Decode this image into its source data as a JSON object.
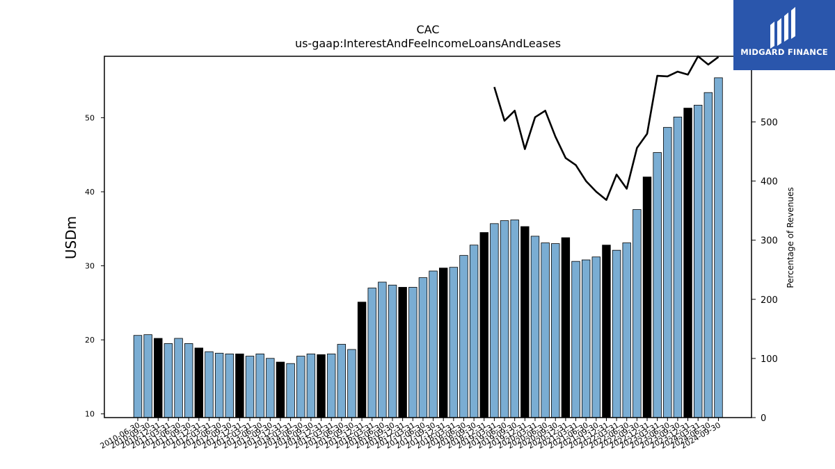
{
  "logo": {
    "text": "MIDGARD FINANCE"
  },
  "chart_data": {
    "type": "bar",
    "title": "CAC",
    "subtitle": "us-gaap:InterestAndFeeIncomeLoansAndLeases",
    "ylabel": "USDm",
    "y2label": "Percentage of Revenues",
    "ylim": [
      9.5,
      58.3
    ],
    "y2lim": [
      0,
      611
    ],
    "yticks": [
      10,
      20,
      30,
      40,
      50
    ],
    "y2ticks": [
      0,
      100,
      200,
      300,
      400,
      500
    ],
    "categories": [
      "2010-06-30",
      "2010-09-30",
      "2010-12-31",
      "2011-03-31",
      "2011-06-30",
      "2011-09-30",
      "2011-12-31",
      "2012-03-31",
      "2012-06-30",
      "2012-09-30",
      "2012-12-31",
      "2013-03-31",
      "2013-06-30",
      "2013-09-30",
      "2013-12-31",
      "2014-03-31",
      "2014-06-30",
      "2014-09-30",
      "2014-12-31",
      "2015-03-31",
      "2015-06-30",
      "2015-09-30",
      "2015-12-31",
      "2016-03-31",
      "2016-06-30",
      "2016-09-30",
      "2016-12-31",
      "2017-03-31",
      "2017-06-30",
      "2017-09-30",
      "2017-12-31",
      "2018-03-31",
      "2018-06-30",
      "2018-09-30",
      "2018-12-31",
      "2019-03-31",
      "2019-06-30",
      "2019-09-30",
      "2019-12-31",
      "2020-03-31",
      "2020-06-30",
      "2020-09-30",
      "2020-12-31",
      "2021-03-31",
      "2021-06-30",
      "2021-09-30",
      "2021-12-31",
      "2022-03-31",
      "2022-06-30",
      "2022-09-30",
      "2022-12-31",
      "2023-03-31",
      "2023-06-30",
      "2023-09-30",
      "2023-12-31",
      "2024-03-31",
      "2024-06-30",
      "2024-09-30"
    ],
    "series": [
      {
        "name": "USDm",
        "kind": "bar",
        "values": [
          20.6,
          20.7,
          20.2,
          19.5,
          20.2,
          19.5,
          18.9,
          18.4,
          18.2,
          18.1,
          18.1,
          17.8,
          18.1,
          17.5,
          17.0,
          16.8,
          17.8,
          18.1,
          18.0,
          18.1,
          19.4,
          18.7,
          25.1,
          27.0,
          27.8,
          27.4,
          27.1,
          27.1,
          28.4,
          29.3,
          29.7,
          29.8,
          31.4,
          32.8,
          34.5,
          35.7,
          36.1,
          36.2,
          35.3,
          34.0,
          33.1,
          33.0,
          33.8,
          30.6,
          30.8,
          31.2,
          32.8,
          32.1,
          33.1,
          37.6,
          42.0,
          45.3,
          48.7,
          50.1,
          51.3,
          51.7,
          53.4,
          55.4
        ],
        "highlight": [
          false,
          false,
          true,
          false,
          false,
          false,
          true,
          false,
          false,
          false,
          true,
          false,
          false,
          false,
          true,
          false,
          false,
          false,
          true,
          false,
          false,
          false,
          true,
          false,
          false,
          false,
          true,
          false,
          false,
          false,
          true,
          false,
          false,
          false,
          true,
          false,
          false,
          false,
          true,
          false,
          false,
          false,
          true,
          false,
          false,
          false,
          true,
          false,
          false,
          false,
          true,
          false,
          false,
          false,
          true,
          false,
          false,
          false
        ],
        "color": "#7aadd3",
        "highlight_color": "#000000"
      },
      {
        "name": "Percentage of Revenues",
        "kind": "line",
        "axis": "right",
        "color": "#000000",
        "values": [
          null,
          null,
          null,
          null,
          null,
          null,
          null,
          null,
          null,
          null,
          null,
          null,
          null,
          null,
          null,
          null,
          null,
          null,
          null,
          null,
          null,
          null,
          null,
          null,
          null,
          null,
          null,
          null,
          null,
          null,
          null,
          null,
          null,
          null,
          null,
          559,
          502,
          519,
          454,
          508,
          519,
          475,
          439,
          427,
          400,
          382,
          368,
          411,
          387,
          456,
          480,
          578,
          577,
          585,
          580,
          628,
          597,
          610
        ]
      }
    ]
  }
}
